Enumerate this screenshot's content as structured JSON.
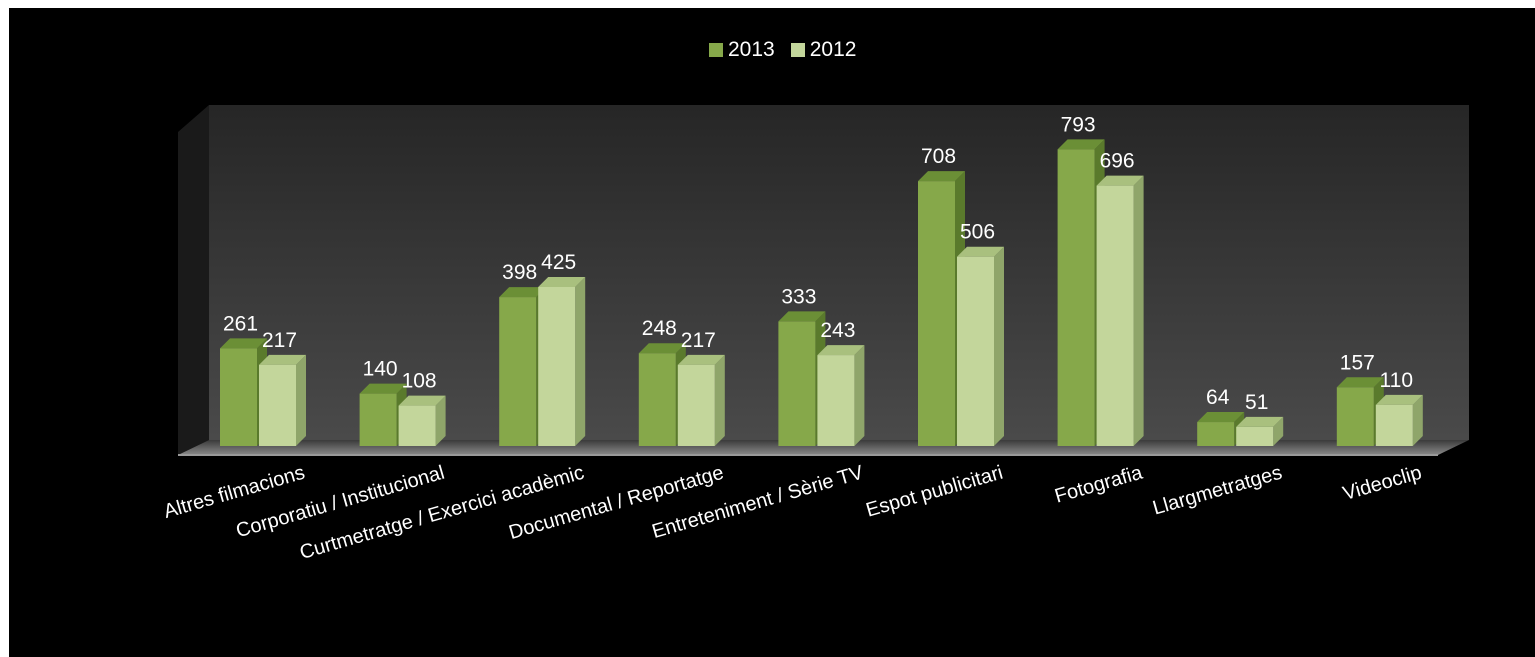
{
  "chart_data": {
    "type": "bar",
    "categories": [
      "Altres filmacions",
      "Corporatiu / Institucional",
      "Curtmetratge / Exercici acadèmic",
      "Documental / Reportatge",
      "Entreteniment / Sèrie TV",
      "Espot publicitari",
      "Fotografia",
      "Llargmetratges",
      "Videoclip"
    ],
    "series": [
      {
        "name": "2013",
        "values": [
          261,
          140,
          398,
          248,
          333,
          708,
          793,
          64,
          157
        ],
        "color": "#86a84a",
        "side_color": "#5a7a2c",
        "top_color": "#6b8f36"
      },
      {
        "name": "2012",
        "values": [
          217,
          108,
          425,
          217,
          243,
          506,
          696,
          51,
          110
        ],
        "color": "#c3d69b",
        "side_color": "#8fa56a",
        "top_color": "#a9c07e"
      }
    ],
    "data_labels": true,
    "legend_position": "top-center",
    "ylim": [
      0,
      850
    ],
    "grid": false
  }
}
